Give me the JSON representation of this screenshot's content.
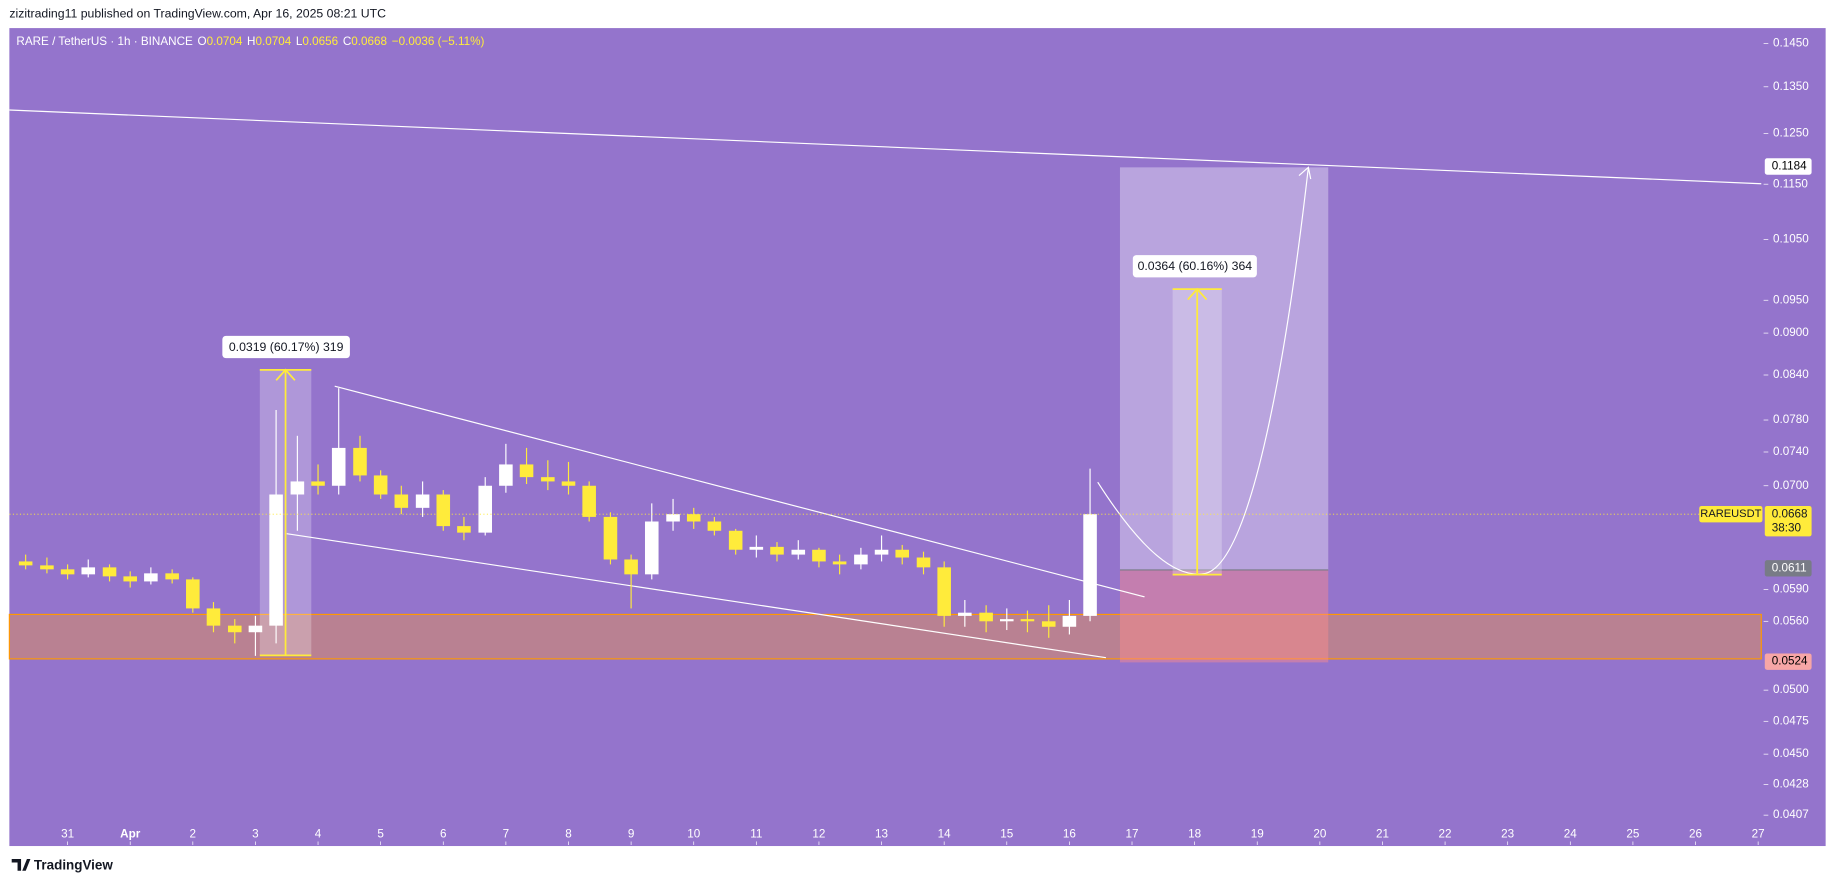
{
  "chart_data": {
    "type": "candlestick",
    "publisher": "zizitrading11 published on TradingView.com, Apr 16, 2025 08:21 UTC",
    "title": "RARE / TetherUS · 1h · BINANCE",
    "ohlc_legend": [
      {
        "label": "O",
        "value": 0.0704
      },
      {
        "label": "H",
        "value": 0.0704
      },
      {
        "label": "L",
        "value": 0.0656
      },
      {
        "label": "C",
        "value": 0.0668
      }
    ],
    "change": "−0.0036 (−5.11%)",
    "x": [
      -0.67,
      -0.33,
      0,
      0.33,
      0.67,
      1,
      1.33,
      1.67,
      2,
      2.33,
      2.67,
      3,
      3.33,
      3.67,
      4,
      4.33,
      4.67,
      5,
      5.33,
      5.67,
      6,
      6.33,
      6.67,
      7,
      7.33,
      7.67,
      8,
      8.33,
      8.67,
      9,
      9.33,
      9.67,
      10,
      10.33,
      10.67,
      11,
      11.33,
      11.67,
      12,
      12.33,
      12.67,
      13,
      13.33,
      13.67,
      14,
      14.33,
      14.67,
      15,
      15.33,
      15.67,
      16,
      16.33
    ],
    "open": [
      0.0618,
      0.0614,
      0.061,
      0.0605,
      0.0612,
      0.0603,
      0.0598,
      0.0606,
      0.06,
      0.0572,
      0.0556,
      0.055,
      0.0556,
      0.069,
      0.0705,
      0.07,
      0.0745,
      0.0712,
      0.069,
      0.0675,
      0.069,
      0.0655,
      0.0648,
      0.07,
      0.0725,
      0.071,
      0.0705,
      0.07,
      0.0665,
      0.062,
      0.0605,
      0.066,
      0.0668,
      0.066,
      0.065,
      0.063,
      0.0633,
      0.0625,
      0.063,
      0.0618,
      0.0615,
      0.0625,
      0.063,
      0.0622,
      0.0612,
      0.0565,
      0.0568,
      0.056,
      0.0562,
      0.056,
      0.0555,
      0.0565
    ],
    "high": [
      0.0625,
      0.0622,
      0.0615,
      0.062,
      0.0615,
      0.0608,
      0.0612,
      0.061,
      0.0602,
      0.0578,
      0.0562,
      0.0565,
      0.0793,
      0.076,
      0.0725,
      0.0822,
      0.076,
      0.0718,
      0.07,
      0.0705,
      0.0695,
      0.0665,
      0.071,
      0.075,
      0.0745,
      0.073,
      0.0728,
      0.0705,
      0.067,
      0.0625,
      0.068,
      0.0685,
      0.0675,
      0.0665,
      0.0652,
      0.0645,
      0.0638,
      0.064,
      0.0632,
      0.0625,
      0.0632,
      0.0645,
      0.0635,
      0.0628,
      0.0618,
      0.058,
      0.0575,
      0.0572,
      0.057,
      0.0575,
      0.058,
      0.072
    ],
    "low": [
      0.061,
      0.0606,
      0.06,
      0.0602,
      0.0598,
      0.0592,
      0.0595,
      0.0596,
      0.0568,
      0.055,
      0.054,
      0.0529,
      0.054,
      0.065,
      0.069,
      0.069,
      0.0705,
      0.0685,
      0.0668,
      0.0665,
      0.065,
      0.064,
      0.0645,
      0.0692,
      0.0702,
      0.0695,
      0.069,
      0.066,
      0.0615,
      0.0572,
      0.06,
      0.065,
      0.0652,
      0.0645,
      0.0625,
      0.0622,
      0.0618,
      0.062,
      0.0612,
      0.0605,
      0.061,
      0.0618,
      0.0615,
      0.0605,
      0.0555,
      0.0555,
      0.055,
      0.0552,
      0.055,
      0.0545,
      0.0548,
      0.056
    ],
    "close": [
      0.0614,
      0.061,
      0.0605,
      0.0612,
      0.0603,
      0.0598,
      0.0606,
      0.06,
      0.0572,
      0.0556,
      0.055,
      0.0556,
      0.069,
      0.0705,
      0.07,
      0.0745,
      0.0712,
      0.069,
      0.0675,
      0.069,
      0.0655,
      0.0648,
      0.07,
      0.0725,
      0.071,
      0.0705,
      0.07,
      0.0665,
      0.062,
      0.0605,
      0.066,
      0.0668,
      0.066,
      0.065,
      0.063,
      0.0633,
      0.0625,
      0.063,
      0.0618,
      0.0615,
      0.0625,
      0.063,
      0.0622,
      0.0612,
      0.0565,
      0.0568,
      0.056,
      0.0562,
      0.056,
      0.0555,
      0.0565,
      0.0668
    ],
    "up_color": "#ffffff",
    "down_color": "#ffeb3b",
    "xlim": [
      -0.93,
      27.05
    ],
    "xticks": [
      {
        "value": 0,
        "label": "31"
      },
      {
        "value": 1,
        "label": "Apr"
      },
      2,
      3,
      4,
      5,
      6,
      7,
      8,
      9,
      10,
      11,
      12,
      13,
      14,
      15,
      16,
      17,
      18,
      19,
      20,
      21,
      22,
      23,
      24,
      25,
      26,
      27
    ],
    "ylim": [
      0.0389,
      0.1487
    ],
    "log_y": true,
    "yticks": [
      {
        "value": 0.145,
        "label": "0.1450"
      },
      {
        "value": 0.135,
        "label": "0.1350"
      },
      {
        "value": 0.125,
        "label": "0.1250"
      },
      {
        "value": 0.115,
        "label": "0.1150"
      },
      {
        "value": 0.105,
        "label": "0.1050"
      },
      {
        "value": 0.095,
        "label": "0.0950"
      },
      {
        "value": 0.09,
        "label": "0.0900"
      },
      {
        "value": 0.084,
        "label": "0.0840"
      },
      {
        "value": 0.078,
        "label": "0.0780"
      },
      {
        "value": 0.074,
        "label": "0.0740"
      },
      {
        "value": 0.07,
        "label": "0.0700"
      },
      {
        "value": 0.059,
        "label": "0.0590"
      },
      {
        "value": 0.056,
        "label": "0.0560"
      },
      {
        "value": 0.05,
        "label": "0.0500"
      },
      0.0475,
      {
        "value": 0.045,
        "label": "0.0450"
      },
      0.0428,
      0.0407
    ],
    "symbol_label": "RAREUSDT",
    "last_price": 0.0668,
    "countdown": "38:30",
    "price_labels": [
      {
        "value": 0.1184,
        "color": "#ffffff",
        "text_color": "#000000"
      },
      {
        "value": 0.0611,
        "color": "#787b86",
        "text_color": "#ffffff"
      },
      {
        "value": 0.0524,
        "color": "#f7a6a6",
        "text_color": "#000000"
      }
    ],
    "measurements": [
      "0.0319 (60.17%) 319",
      "0.0364 (60.16%) 364"
    ],
    "brand": "TradingView"
  }
}
